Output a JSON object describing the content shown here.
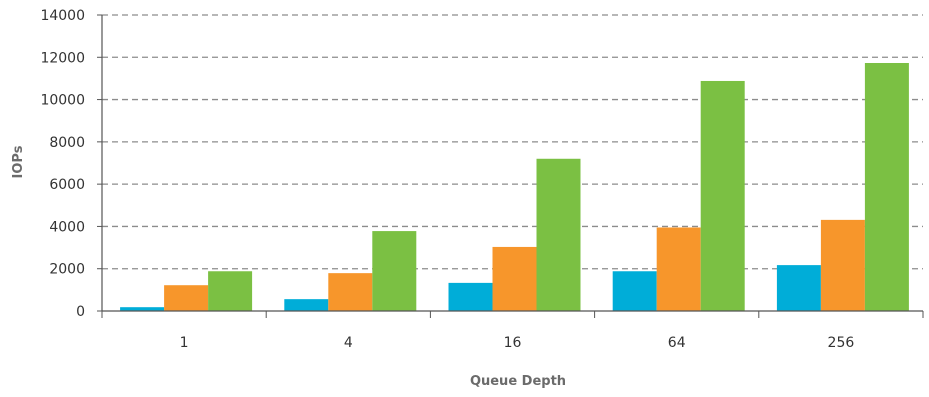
{
  "chart_data": {
    "type": "bar",
    "title": "",
    "xlabel": "Queue Depth",
    "ylabel": "IOPs",
    "categories": [
      "1",
      "4",
      "16",
      "64",
      "256"
    ],
    "ylim": [
      0,
      14000
    ],
    "yticks": [
      "0",
      "2000",
      "4000",
      "6000",
      "8000",
      "10000",
      "12000",
      "14000"
    ],
    "grid": true,
    "legend": "none",
    "series": [
      {
        "color": "#00ADD8",
        "values": [
          180,
          560,
          1330,
          1880,
          2170
        ]
      },
      {
        "color": "#F7962B",
        "values": [
          1220,
          1790,
          3030,
          3950,
          4310
        ]
      },
      {
        "color": "#7BC043",
        "values": [
          1880,
          3780,
          7200,
          10880,
          11730
        ]
      }
    ]
  }
}
